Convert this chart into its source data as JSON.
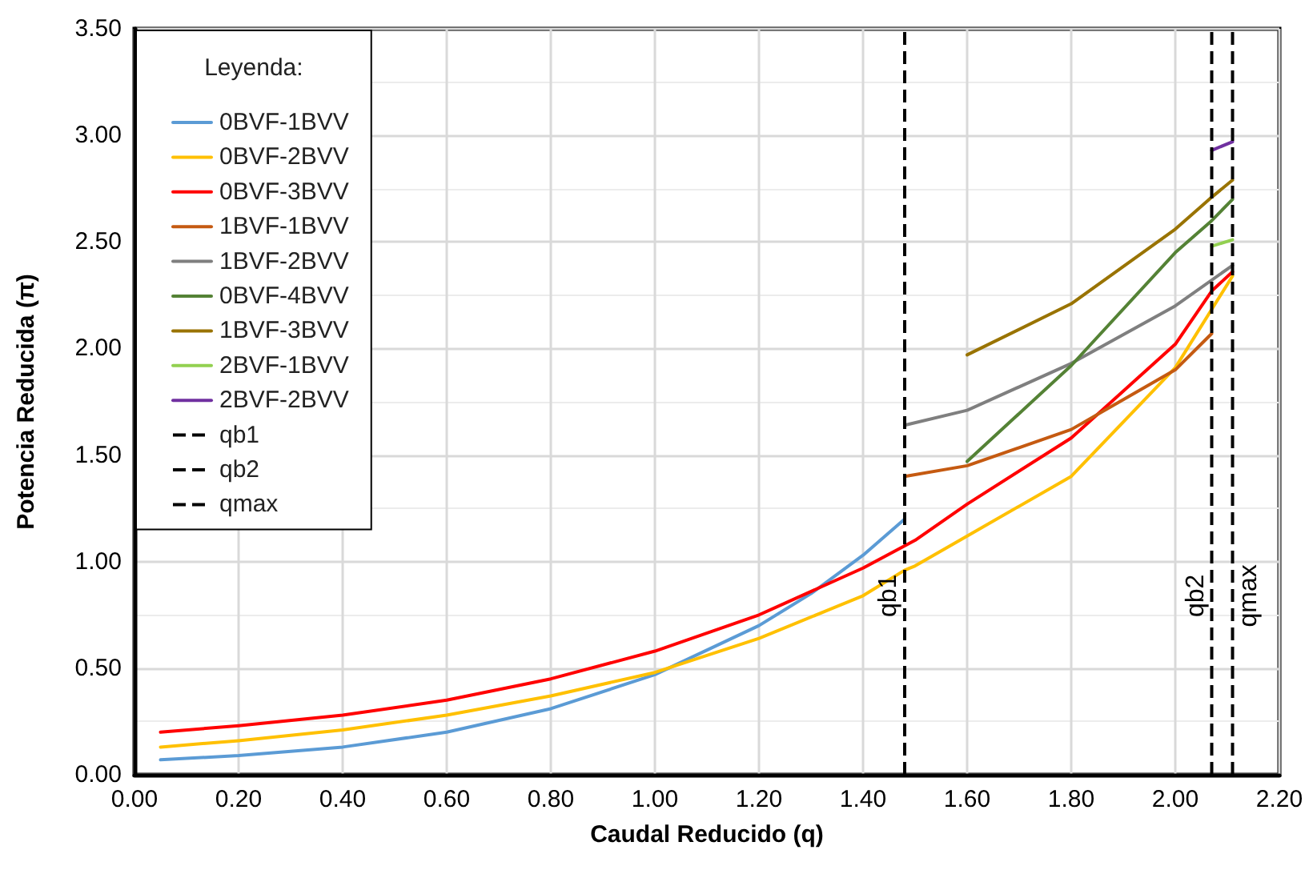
{
  "chart_data": {
    "type": "line",
    "xlabel": "Caudal Reducido (q)",
    "ylabel": "Potencia Reducida (π)",
    "legend_title": "Leyenda:",
    "xlim": [
      0,
      2.2
    ],
    "ylim": [
      0,
      3.5
    ],
    "xticks": [
      {
        "value": 0,
        "label": "0.00"
      },
      {
        "value": 0.2,
        "label": "0.20"
      },
      {
        "value": 0.4,
        "label": "0.40"
      },
      {
        "value": 0.6,
        "label": "0.60"
      },
      {
        "value": 0.8,
        "label": "0.80"
      },
      {
        "value": 1.0,
        "label": "1.00"
      },
      {
        "value": 1.2,
        "label": "1.20"
      },
      {
        "value": 1.4,
        "label": "1.40"
      },
      {
        "value": 1.6,
        "label": "1.60"
      },
      {
        "value": 1.8,
        "label": "1.80"
      },
      {
        "value": 2.0,
        "label": "2.00"
      },
      {
        "value": 2.2,
        "label": "2.20"
      }
    ],
    "yticks": [
      {
        "value": 0,
        "label": "0.00"
      },
      {
        "value": 0.5,
        "label": "0.50"
      },
      {
        "value": 1.0,
        "label": "1.00"
      },
      {
        "value": 1.5,
        "label": "1.50"
      },
      {
        "value": 2.0,
        "label": "2.00"
      },
      {
        "value": 2.5,
        "label": "2.50"
      },
      {
        "value": 3.0,
        "label": "3.00"
      },
      {
        "value": 3.5,
        "label": "3.50"
      }
    ],
    "grid": true,
    "legend": "top left",
    "marker": "none",
    "line_style": "solid",
    "series": [
      {
        "name": "0BVF-1BVV",
        "color": "#5b9bd5",
        "x": [
          0.05,
          0.2,
          0.4,
          0.6,
          0.8,
          1.0,
          1.2,
          1.3,
          1.4,
          1.48
        ],
        "values": [
          0.07,
          0.09,
          0.13,
          0.2,
          0.31,
          0.47,
          0.7,
          0.85,
          1.03,
          1.2
        ]
      },
      {
        "name": "0BVF-2BVV",
        "color": "#ffc000",
        "x": [
          0.05,
          0.2,
          0.4,
          0.6,
          0.8,
          1.0,
          1.2,
          1.4,
          1.48,
          1.5,
          1.6,
          1.8,
          2.0,
          2.11
        ],
        "values": [
          0.13,
          0.16,
          0.21,
          0.28,
          0.37,
          0.48,
          0.64,
          0.84,
          0.96,
          0.98,
          1.12,
          1.4,
          1.91,
          2.34
        ]
      },
      {
        "name": "0BVF-3BVV",
        "color": "#ff0000",
        "x": [
          0.05,
          0.2,
          0.4,
          0.6,
          0.8,
          1.0,
          1.2,
          1.4,
          1.5,
          1.6,
          1.8,
          2.0,
          2.07,
          2.11
        ],
        "values": [
          0.2,
          0.23,
          0.28,
          0.35,
          0.45,
          0.58,
          0.75,
          0.97,
          1.1,
          1.27,
          1.58,
          2.02,
          2.27,
          2.36
        ]
      },
      {
        "name": "1BVF-1BVV",
        "color": "#c55a11",
        "x": [
          1.48,
          1.6,
          1.8,
          2.0,
          2.07
        ],
        "values": [
          1.4,
          1.45,
          1.62,
          1.9,
          2.07
        ]
      },
      {
        "name": "1BVF-2BVV",
        "color": "#7f7f7f",
        "x": [
          1.48,
          1.6,
          1.8,
          2.0,
          2.11
        ],
        "values": [
          1.64,
          1.71,
          1.93,
          2.2,
          2.39
        ]
      },
      {
        "name": "0BVF-4BVV",
        "color": "#548235",
        "x": [
          1.6,
          1.8,
          2.0,
          2.07,
          2.11
        ],
        "values": [
          1.47,
          1.92,
          2.45,
          2.6,
          2.7
        ]
      },
      {
        "name": "1BVF-3BVV",
        "color": "#997300",
        "x": [
          1.6,
          1.8,
          2.0,
          2.07,
          2.11
        ],
        "values": [
          1.97,
          2.21,
          2.56,
          2.71,
          2.79
        ]
      },
      {
        "name": "2BVF-1BVV",
        "color": "#92d050",
        "x": [
          2.07,
          2.11
        ],
        "values": [
          2.48,
          2.51
        ]
      },
      {
        "name": "2BVF-2BVV",
        "color": "#7030a0",
        "x": [
          2.07,
          2.11
        ],
        "values": [
          2.93,
          2.97
        ]
      }
    ],
    "ref_lines": [
      {
        "axis": "x",
        "value": 1.48,
        "label": "qb1",
        "color": "#000000",
        "line_style": "dashed"
      },
      {
        "axis": "x",
        "value": 2.07,
        "label": "qb2",
        "color": "#000000",
        "line_style": "dashed"
      },
      {
        "axis": "x",
        "value": 2.11,
        "label": "qmax",
        "color": "#000000",
        "line_style": "dashed"
      }
    ]
  }
}
